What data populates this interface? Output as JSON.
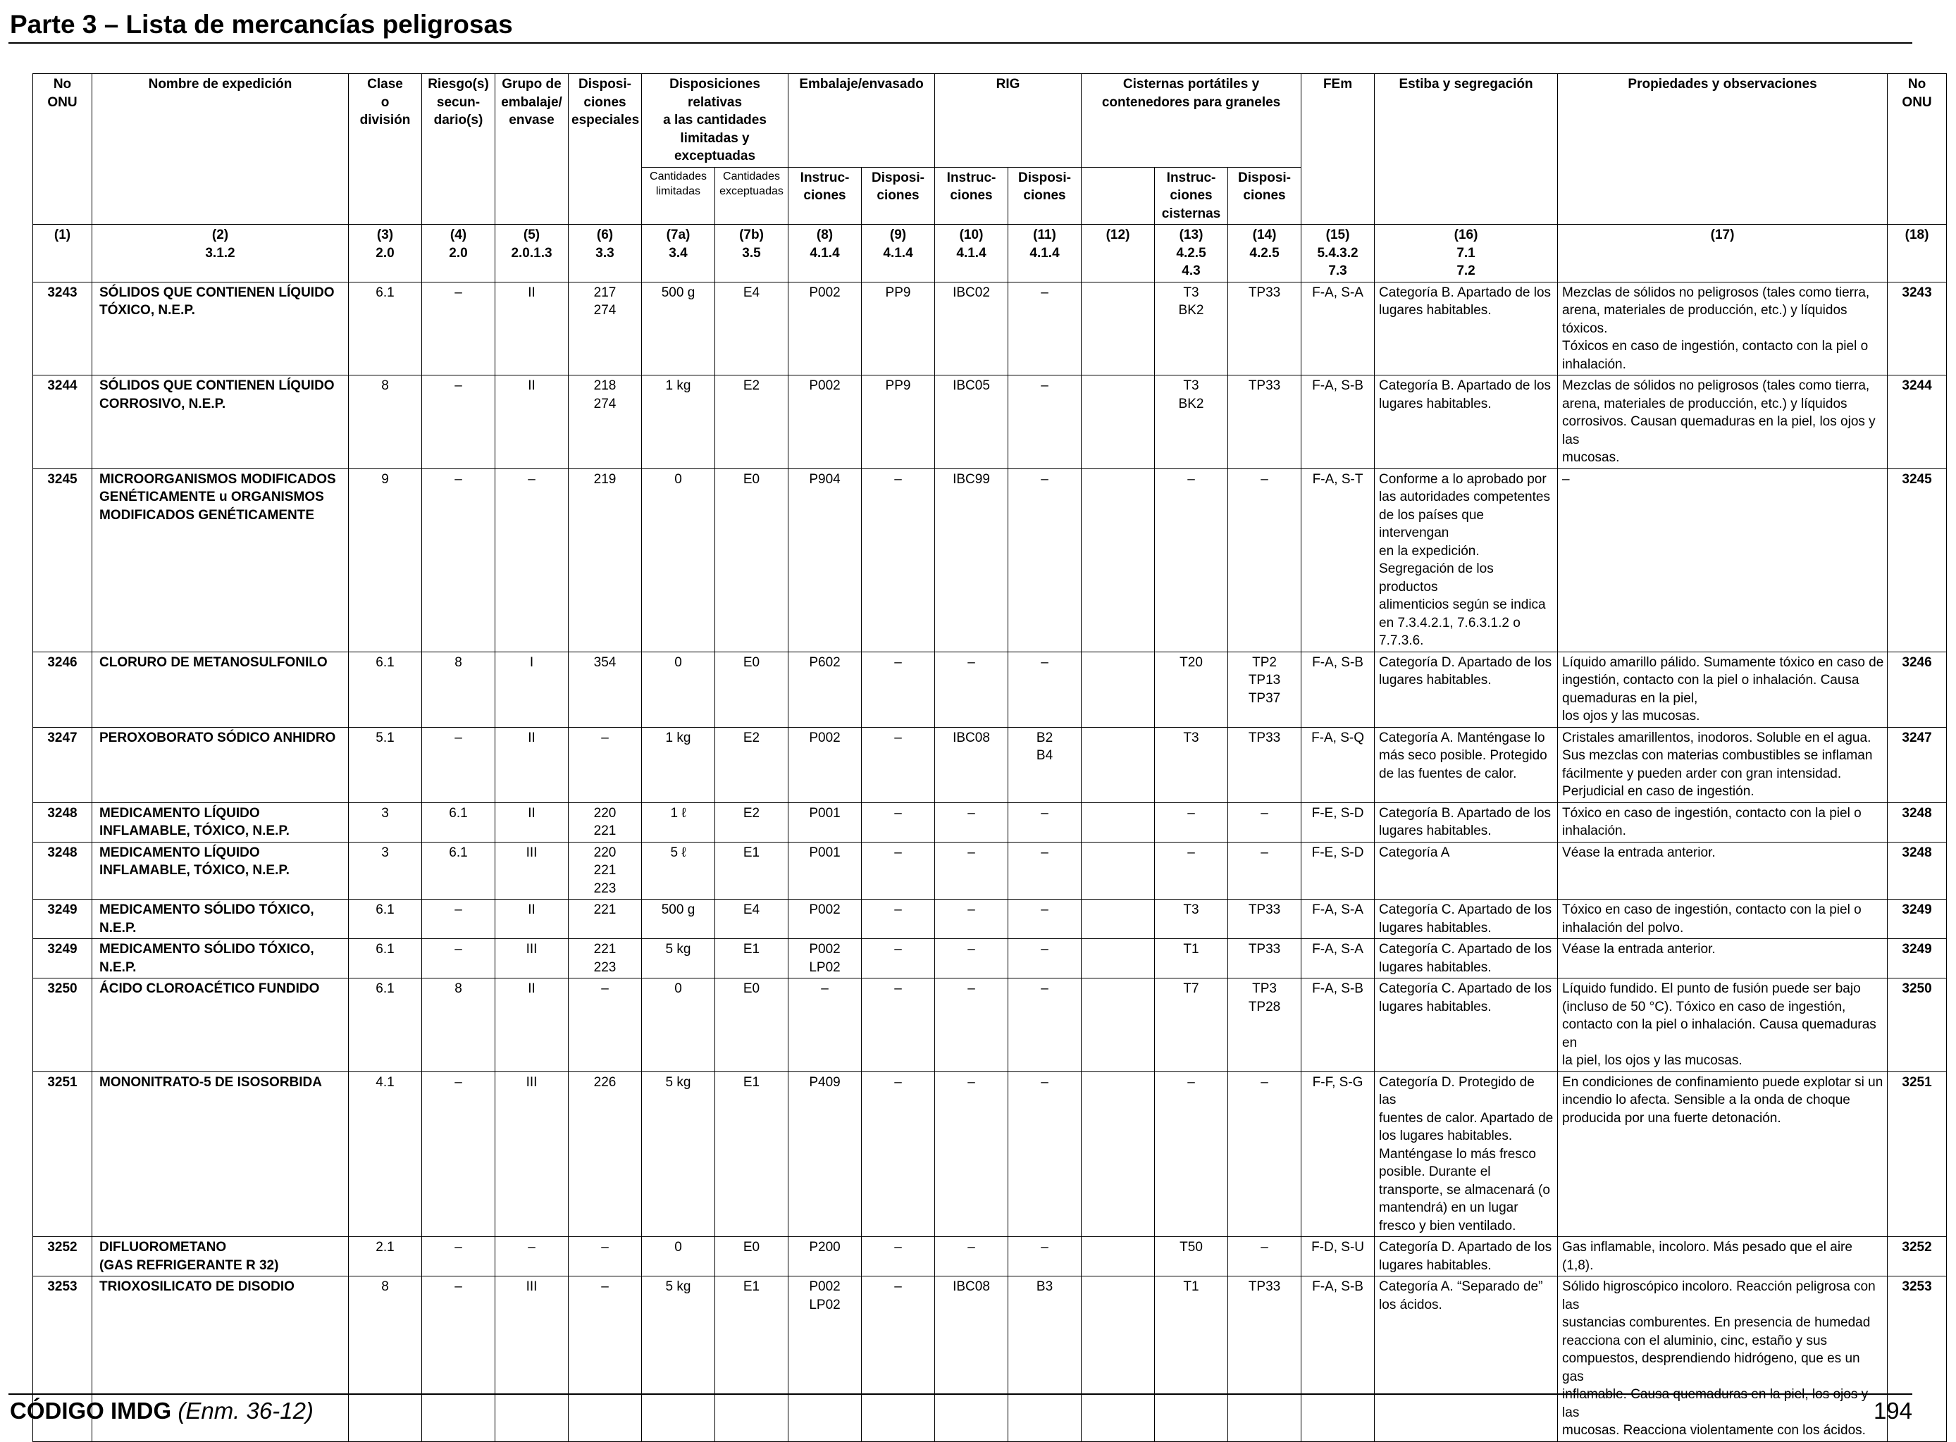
{
  "page_title": "Parte 3 – Lista de mercancías peligrosas",
  "headers": {
    "c1": "No ONU",
    "c2": "Nombre de expedición",
    "c3": [
      "Clase",
      "o",
      "división"
    ],
    "c4": [
      "Riesgo(s)",
      "secun-",
      "dario(s)"
    ],
    "c5": [
      "Grupo de",
      "embalaje/",
      "envase"
    ],
    "c6": [
      "Disposi-",
      "ciones",
      "especiales"
    ],
    "c7": [
      "Disposiciones relativas",
      "a las cantidades",
      "limitadas y exceptuadas"
    ],
    "c7a": [
      "Cantidades",
      "limitadas"
    ],
    "c7b": [
      "Cantidades",
      "exceptuadas"
    ],
    "emb": "Embalaje/envasado",
    "c8": [
      "Instruc-",
      "ciones"
    ],
    "c9": [
      "Disposi-",
      "ciones"
    ],
    "rig": "RIG",
    "c10": [
      "Instruc-",
      "ciones"
    ],
    "c11": [
      "Disposi-",
      "ciones"
    ],
    "cis": [
      "Cisternas portátiles y",
      "contenedores para graneles"
    ],
    "c13": [
      "Instruc-",
      "ciones",
      "cisternas"
    ],
    "c14": [
      "Disposi-",
      "ciones"
    ],
    "c15": "FEm",
    "c16": "Estiba y segregación",
    "c17": "Propiedades y observaciones",
    "c18": "No ONU"
  },
  "refs": [
    [
      "(1)"
    ],
    [
      "(2)",
      "3.1.2"
    ],
    [
      "(3)",
      "2.0"
    ],
    [
      "(4)",
      "2.0"
    ],
    [
      "(5)",
      "2.0.1.3"
    ],
    [
      "(6)",
      "3.3"
    ],
    [
      "(7a)",
      "3.4"
    ],
    [
      "(7b)",
      "3.5"
    ],
    [
      "(8)",
      "4.1.4"
    ],
    [
      "(9)",
      "4.1.4"
    ],
    [
      "(10)",
      "4.1.4"
    ],
    [
      "(11)",
      "4.1.4"
    ],
    [
      "(12)"
    ],
    [
      "(13)",
      "4.2.5",
      "4.3"
    ],
    [
      "(14)",
      "4.2.5"
    ],
    [
      "(15)",
      "5.4.3.2",
      "7.3"
    ],
    [
      "(16)",
      "7.1",
      "7.2"
    ],
    [
      "(17)"
    ],
    [
      "(18)"
    ]
  ],
  "rows": [
    {
      "un": "3243",
      "name": [
        "SÓLIDOS QUE CONTIENEN LÍQUIDO",
        "TÓXICO, N.E.P."
      ],
      "cls": "6.1",
      "sub": "–",
      "pg": "II",
      "sp": [
        "217",
        "274"
      ],
      "lq": "500 g",
      "eq": "E4",
      "pi": [
        "P002"
      ],
      "pp": "PP9",
      "ibc": "IBC02",
      "ibp": [
        "–"
      ],
      "c12": "",
      "tank": [
        "T3",
        "BK2"
      ],
      "tp": [
        "TP33"
      ],
      "ems": "F-A, S-A",
      "stow": [
        "Categoría B. Apartado de los",
        "lugares habitables."
      ],
      "props": [
        "Mezclas de sólidos no peligrosos (tales como tierra,",
        "arena, materiales de producción, etc.) y líquidos tóxicos.",
        "Tóxicos en caso de ingestión, contacto con la piel o",
        "inhalación."
      ]
    },
    {
      "un": "3244",
      "name": [
        "SÓLIDOS QUE CONTIENEN LÍQUIDO",
        "CORROSIVO, N.E.P."
      ],
      "cls": "8",
      "sub": "–",
      "pg": "II",
      "sp": [
        "218",
        "274"
      ],
      "lq": "1 kg",
      "eq": "E2",
      "pi": [
        "P002"
      ],
      "pp": "PP9",
      "ibc": "IBC05",
      "ibp": [
        "–"
      ],
      "c12": "",
      "tank": [
        "T3",
        "BK2"
      ],
      "tp": [
        "TP33"
      ],
      "ems": "F-A, S-B",
      "stow": [
        "Categoría B. Apartado de los",
        "lugares habitables."
      ],
      "props": [
        "Mezclas de sólidos no peligrosos (tales como tierra,",
        "arena, materiales de producción, etc.) y líquidos",
        "corrosivos. Causan quemaduras en la piel, los ojos y las",
        "mucosas."
      ]
    },
    {
      "un": "3245",
      "name": [
        "MICROORGANISMOS MODIFICADOS",
        "GENÉTICAMENTE u ORGANISMOS",
        "MODIFICADOS GENÉTICAMENTE"
      ],
      "cls": "9",
      "sub": "–",
      "pg": "–",
      "sp": [
        "219"
      ],
      "lq": "0",
      "eq": "E0",
      "pi": [
        "P904"
      ],
      "pp": "–",
      "ibc": "IBC99",
      "ibp": [
        "–"
      ],
      "c12": "",
      "tank": [
        "–"
      ],
      "tp": [
        "–"
      ],
      "ems": "F-A, S-T",
      "stow": [
        "Conforme a lo aprobado por",
        "las autoridades competentes",
        "de los países que intervengan",
        "en la expedición.",
        "Segregación de los productos",
        "alimenticios según se indica",
        "en 7.3.4.2.1, 7.6.3.1.2 o",
        "7.7.3.6."
      ],
      "props": [
        "–"
      ]
    },
    {
      "un": "3246",
      "name": [
        "CLORURO DE METANOSULFONILO"
      ],
      "cls": "6.1",
      "sub": "8",
      "pg": "I",
      "sp": [
        "354"
      ],
      "lq": "0",
      "eq": "E0",
      "pi": [
        "P602"
      ],
      "pp": "–",
      "ibc": "–",
      "ibp": [
        "–"
      ],
      "c12": "",
      "tank": [
        "T20"
      ],
      "tp": [
        "TP2",
        "TP13",
        "TP37"
      ],
      "ems": "F-A, S-B",
      "stow": [
        "Categoría D. Apartado de los",
        "lugares habitables."
      ],
      "props": [
        "Líquido amarillo pálido. Sumamente tóxico en caso de",
        "ingestión, contacto con la piel o inhalación. Causa",
        "quemaduras en la piel,",
        "los ojos y las mucosas."
      ]
    },
    {
      "un": "3247",
      "name": [
        "PEROXOBORATO SÓDICO ANHIDRO"
      ],
      "cls": "5.1",
      "sub": "–",
      "pg": "II",
      "sp": [
        "–"
      ],
      "lq": "1 kg",
      "eq": "E2",
      "pi": [
        "P002"
      ],
      "pp": "–",
      "ibc": "IBC08",
      "ibp": [
        "B2",
        "B4"
      ],
      "c12": "",
      "tank": [
        "T3"
      ],
      "tp": [
        "TP33"
      ],
      "ems": "F-A, S-Q",
      "stow": [
        "Categoría A. Manténgase lo",
        "más seco posible. Protegido",
        "de las fuentes de calor."
      ],
      "props": [
        "Cristales amarillentos, inodoros. Soluble en el agua.",
        "Sus mezclas con materias combustibles se inflaman",
        "fácilmente y pueden arder con gran intensidad.",
        "Perjudicial en caso de ingestión."
      ]
    },
    {
      "un": "3248",
      "name": [
        "MEDICAMENTO LÍQUIDO",
        "INFLAMABLE, TÓXICO, N.E.P."
      ],
      "cls": "3",
      "sub": "6.1",
      "pg": "II",
      "sp": [
        "220",
        "221"
      ],
      "lq": "1 ℓ",
      "eq": "E2",
      "pi": [
        "P001"
      ],
      "pp": "–",
      "ibc": "–",
      "ibp": [
        "–"
      ],
      "c12": "",
      "tank": [
        "–"
      ],
      "tp": [
        "–"
      ],
      "ems": "F-E, S-D",
      "stow": [
        "Categoría B. Apartado de los",
        "lugares habitables."
      ],
      "props": [
        "Tóxico en caso de ingestión, contacto con la piel o",
        "inhalación."
      ]
    },
    {
      "un": "3248",
      "name": [
        "MEDICAMENTO LÍQUIDO",
        "INFLAMABLE, TÓXICO, N.E.P."
      ],
      "cls": "3",
      "sub": "6.1",
      "pg": "III",
      "sp": [
        "220",
        "221",
        "223"
      ],
      "lq": "5 ℓ",
      "eq": "E1",
      "pi": [
        "P001"
      ],
      "pp": "–",
      "ibc": "–",
      "ibp": [
        "–"
      ],
      "c12": "",
      "tank": [
        "–"
      ],
      "tp": [
        "–"
      ],
      "ems": "F-E, S-D",
      "stow": [
        "Categoría A"
      ],
      "props": [
        "Véase la entrada anterior."
      ]
    },
    {
      "un": "3249",
      "name": [
        "MEDICAMENTO SÓLIDO TÓXICO,",
        "N.E.P."
      ],
      "cls": "6.1",
      "sub": "–",
      "pg": "II",
      "sp": [
        "221"
      ],
      "lq": "500 g",
      "eq": "E4",
      "pi": [
        "P002"
      ],
      "pp": "–",
      "ibc": "–",
      "ibp": [
        "–"
      ],
      "c12": "",
      "tank": [
        "T3"
      ],
      "tp": [
        "TP33"
      ],
      "ems": "F-A, S-A",
      "stow": [
        "Categoría C. Apartado de los",
        "lugares habitables."
      ],
      "props": [
        "Tóxico en caso de ingestión, contacto con la piel o",
        "inhalación del polvo."
      ]
    },
    {
      "un": "3249",
      "name": [
        "MEDICAMENTO SÓLIDO TÓXICO,",
        "N.E.P."
      ],
      "cls": "6.1",
      "sub": "–",
      "pg": "III",
      "sp": [
        "221",
        "223"
      ],
      "lq": "5 kg",
      "eq": "E1",
      "pi": [
        "P002",
        "LP02"
      ],
      "pp": "–",
      "ibc": "–",
      "ibp": [
        "–"
      ],
      "c12": "",
      "tank": [
        "T1"
      ],
      "tp": [
        "TP33"
      ],
      "ems": "F-A, S-A",
      "stow": [
        "Categoría C. Apartado de los",
        "lugares habitables."
      ],
      "props": [
        "Véase la entrada anterior."
      ]
    },
    {
      "un": "3250",
      "name": [
        "ÁCIDO CLOROACÉTICO FUNDIDO"
      ],
      "cls": "6.1",
      "sub": "8",
      "pg": "II",
      "sp": [
        "–"
      ],
      "lq": "0",
      "eq": "E0",
      "pi": [
        "–"
      ],
      "pp": "–",
      "ibc": "–",
      "ibp": [
        "–"
      ],
      "c12": "",
      "tank": [
        "T7"
      ],
      "tp": [
        "TP3",
        "TP28"
      ],
      "ems": "F-A, S-B",
      "stow": [
        "Categoría C. Apartado de los",
        "lugares habitables."
      ],
      "props": [
        "Líquido fundido. El punto de fusión puede ser bajo",
        "(incluso de 50 °C). Tóxico en caso de ingestión,",
        "contacto con la piel o inhalación. Causa quemaduras en",
        "la piel, los ojos y las mucosas."
      ]
    },
    {
      "un": "3251",
      "name": [
        "MONONITRATO-5 DE ISOSORBIDA"
      ],
      "cls": "4.1",
      "sub": "–",
      "pg": "III",
      "sp": [
        "226"
      ],
      "lq": "5 kg",
      "eq": "E1",
      "pi": [
        "P409"
      ],
      "pp": "–",
      "ibc": "–",
      "ibp": [
        "–"
      ],
      "c12": "",
      "tank": [
        "–"
      ],
      "tp": [
        "–"
      ],
      "ems": "F-F, S-G",
      "stow": [
        "Categoría D. Protegido de las",
        "fuentes de calor. Apartado de",
        "los lugares habitables.",
        "Manténgase lo más fresco",
        "posible. Durante el",
        "transporte, se almacenará (o",
        "mantendrá) en un lugar",
        "fresco y bien ventilado."
      ],
      "props": [
        "En condiciones de confinamiento puede explotar si un",
        "incendio lo afecta. Sensible a la onda de choque",
        "producida por una fuerte detonación."
      ]
    },
    {
      "un": "3252",
      "name": [
        "DIFLUOROMETANO",
        "(GAS REFRIGERANTE R 32)"
      ],
      "cls": "2.1",
      "sub": "–",
      "pg": "–",
      "sp": [
        "–"
      ],
      "lq": "0",
      "eq": "E0",
      "pi": [
        "P200"
      ],
      "pp": "–",
      "ibc": "–",
      "ibp": [
        "–"
      ],
      "c12": "",
      "tank": [
        "T50"
      ],
      "tp": [
        "–"
      ],
      "ems": "F-D, S-U",
      "stow": [
        "Categoría D. Apartado de los",
        "lugares habitables."
      ],
      "props": [
        "Gas inflamable, incoloro. Más pesado que el aire (1,8)."
      ]
    },
    {
      "un": "3253",
      "name": [
        "TRIOXOSILICATO DE DISODIO"
      ],
      "cls": "8",
      "sub": "–",
      "pg": "III",
      "sp": [
        "–"
      ],
      "lq": "5 kg",
      "eq": "E1",
      "pi": [
        "P002",
        "LP02"
      ],
      "pp": "–",
      "ibc": "IBC08",
      "ibp": [
        "B3"
      ],
      "c12": "",
      "tank": [
        "T1"
      ],
      "tp": [
        "TP33"
      ],
      "ems": "F-A, S-B",
      "stow": [
        "Categoría A. “Separado de”",
        "los ácidos."
      ],
      "props": [
        "Sólido higroscópico incoloro. Reacción peligrosa con las",
        "sustancias comburentes. En presencia de humedad",
        "reacciona con el aluminio, cinc, estaño y sus",
        "compuestos, desprendiendo hidrógeno, que es un gas",
        "inflamable. Causa quemaduras en la piel, los ojos y las",
        "mucosas. Reacciona violentamente con los ácidos."
      ]
    }
  ],
  "footer": {
    "code": "CÓDIGO IMDG",
    "amendment": "(Enm. 36-12)",
    "page_number": "194"
  }
}
